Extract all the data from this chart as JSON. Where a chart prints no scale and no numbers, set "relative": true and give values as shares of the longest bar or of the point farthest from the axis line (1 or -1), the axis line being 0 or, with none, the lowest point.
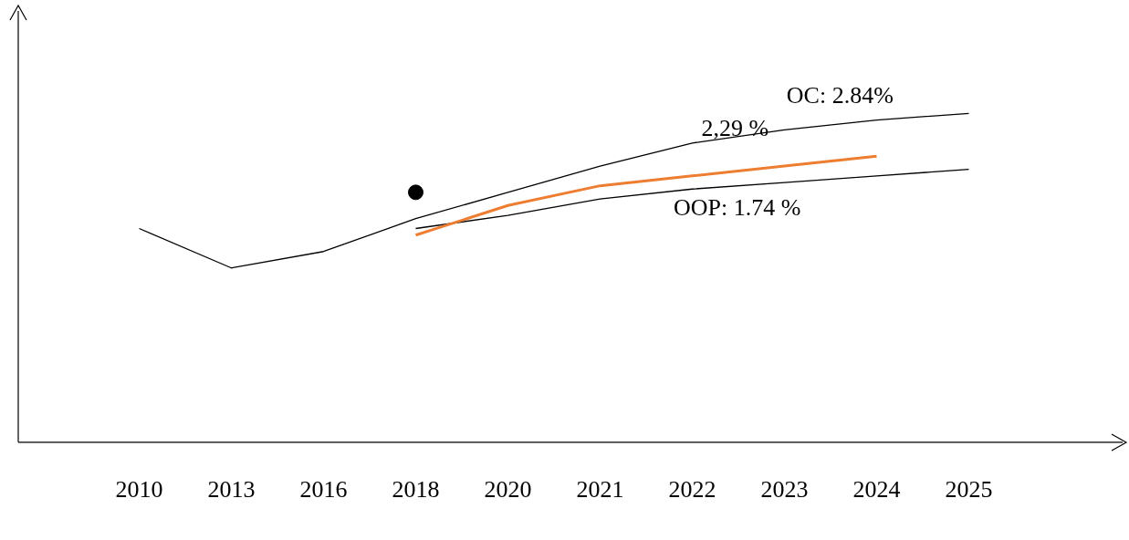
{
  "chart_data": {
    "type": "line",
    "relative": true,
    "marker": "none",
    "legend": false,
    "grid": false,
    "categories": [
      "2010",
      "2013",
      "2016",
      "2018",
      "2020",
      "2021",
      "2022",
      "2023",
      "2024",
      "2025"
    ],
    "series": [
      {
        "color": "#000000",
        "values": [
          0.65,
          0.53,
          0.58,
          0.68,
          0.76,
          0.84,
          0.91,
          0.95,
          0.98,
          1.0
        ]
      },
      {
        "color": "#ed7d31",
        "values": [
          null,
          null,
          null,
          0.63,
          0.72,
          0.78,
          0.81,
          0.84,
          0.87,
          null
        ]
      },
      {
        "color": "#000000",
        "values": [
          null,
          null,
          null,
          0.65,
          0.69,
          0.74,
          0.77,
          0.79,
          0.81,
          0.83
        ]
      },
      {
        "type": "scatter",
        "marker": "circle",
        "color": "#000000",
        "values": [
          null,
          null,
          null,
          0.76,
          null,
          null,
          null,
          null,
          null,
          null
        ]
      }
    ],
    "annotations": [
      "OC: 2.84%",
      "2,29 %",
      "OOP: 1.74 %"
    ]
  }
}
